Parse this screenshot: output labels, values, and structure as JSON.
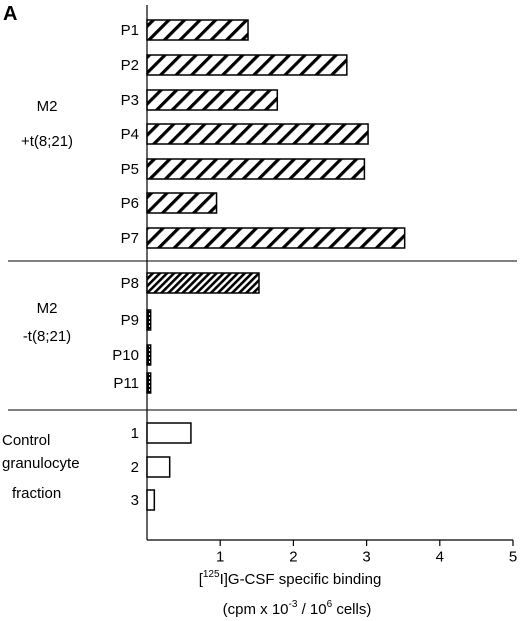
{
  "panel_label": "A",
  "colors": {
    "ink": "#000000",
    "background": "#ffffff"
  },
  "chart_data": {
    "type": "bar",
    "orientation": "horizontal",
    "xlabel": "[125I]G-CSF specific binding",
    "xlabel_parts": {
      "before": "[",
      "sup": "125",
      "after": "I]G-CSF specific binding"
    },
    "xunits": "(cpm x 10-3 / 106 cells)",
    "xunits_parts": {
      "p1": "(cpm x 10",
      "sup1": "-3",
      "p2": " / 10",
      "sup2": "6",
      "p3": " cells)"
    },
    "xlim": [
      0,
      5
    ],
    "xticks": [
      "1",
      "2",
      "3",
      "4",
      "5"
    ],
    "grid": false,
    "groups": [
      {
        "label_lines": [
          "M2",
          "+t(8;21)"
        ],
        "pattern": "hatch",
        "categories": [
          "P1",
          "P2",
          "P3",
          "P4",
          "P5",
          "P6",
          "P7"
        ],
        "values": [
          1.38,
          2.73,
          1.78,
          3.02,
          2.97,
          0.95,
          3.52
        ]
      },
      {
        "label_lines": [
          "M2",
          "-t(8;21)"
        ],
        "pattern": [
          "dense-hatch",
          "dots",
          "dots",
          "dots"
        ],
        "categories": [
          "P8",
          "P9",
          "P10",
          "P11"
        ],
        "values": [
          1.53,
          0.05,
          0.05,
          0.05
        ]
      },
      {
        "label_lines": [
          "Control",
          "granulocyte",
          "fraction"
        ],
        "pattern": "open",
        "categories": [
          "1",
          "2",
          "3"
        ],
        "values": [
          0.6,
          0.31,
          0.1
        ]
      }
    ]
  }
}
